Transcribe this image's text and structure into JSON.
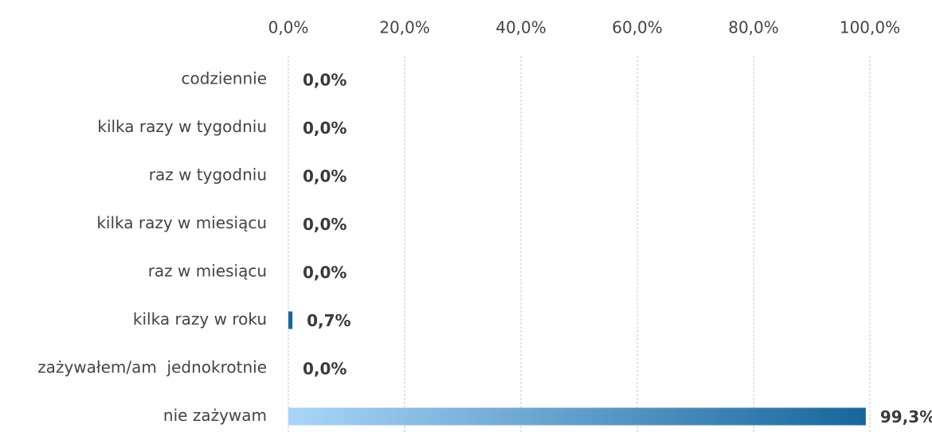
{
  "chart_data": {
    "type": "bar",
    "orientation": "horizontal",
    "categories": [
      "codziennie",
      "kilka razy w tygodniu",
      "raz w tygodniu",
      "kilka razy w miesiącu",
      "raz w miesiącu",
      "kilka razy w roku",
      "zażywałem/am  jednokrotnie",
      "nie zażywam"
    ],
    "values": [
      0,
      0,
      0,
      0,
      0,
      0.7,
      0,
      99.3
    ],
    "value_labels": [
      "0,0%",
      "0,0%",
      "0,0%",
      "0,0%",
      "0,0%",
      "0,7%",
      "0,0%",
      "99,3%"
    ],
    "gradient": [
      "#a9d6f8",
      "#16669d"
    ],
    "xlim": [
      0,
      100
    ],
    "xticks": [
      {
        "value": 0,
        "label": "0,0%"
      },
      {
        "value": 20,
        "label": "20,0%"
      },
      {
        "value": 40,
        "label": "40,0%"
      },
      {
        "value": 60,
        "label": "60,0%"
      },
      {
        "value": 80,
        "label": "80,0%"
      },
      {
        "value": 100,
        "label": "100,0%"
      }
    ],
    "grid": true
  }
}
